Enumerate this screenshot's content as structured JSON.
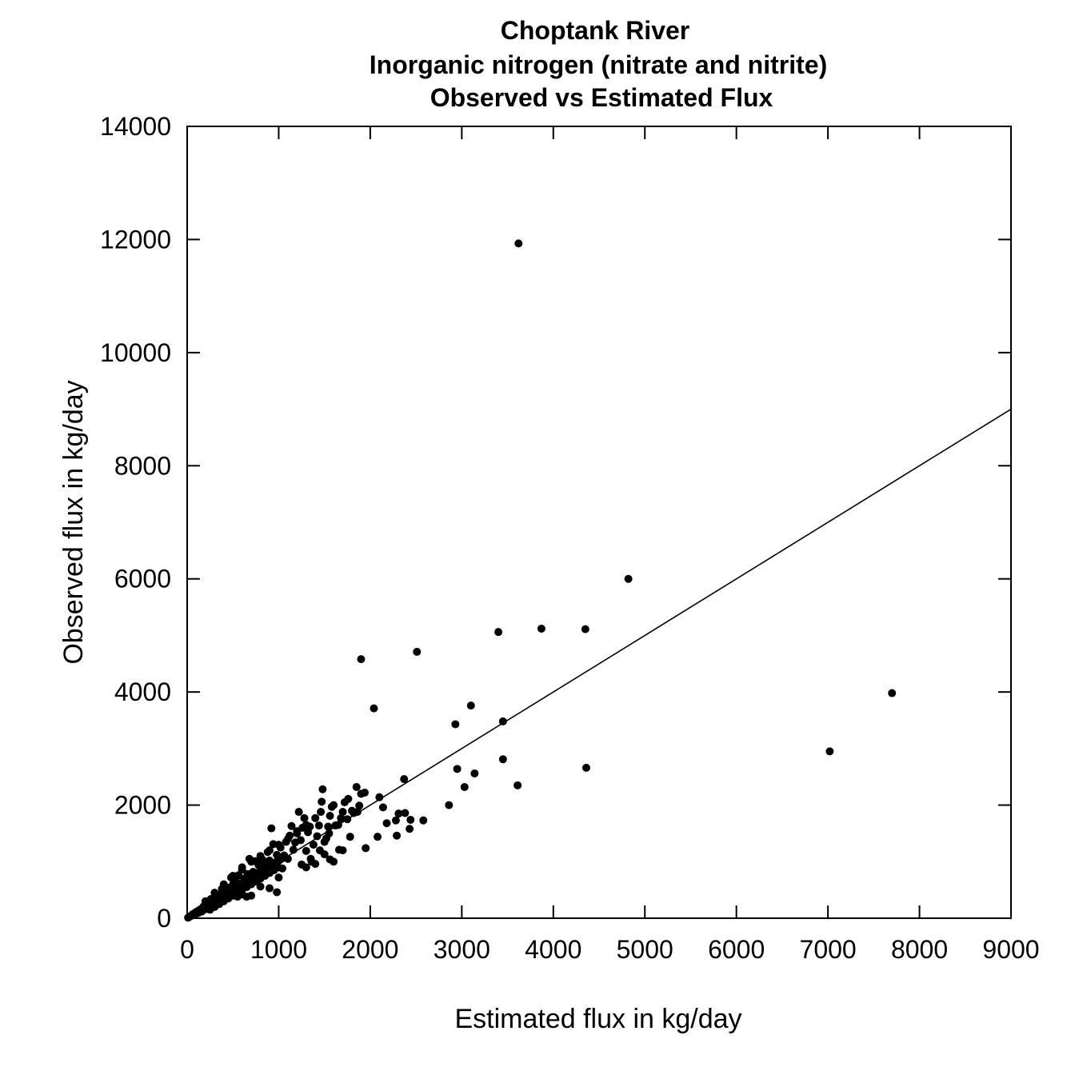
{
  "chart_data": {
    "type": "scatter",
    "title_lines": [
      "Choptank River",
      "Inorganic nitrogen (nitrate and nitrite)",
      "Observed vs Estimated Flux"
    ],
    "xlabel": "Estimated flux in kg/day",
    "ylabel": "Observed flux in kg/day",
    "xlim": [
      0,
      9000
    ],
    "ylim": [
      0,
      14000
    ],
    "xticks": [
      0,
      1000,
      2000,
      3000,
      4000,
      5000,
      6000,
      7000,
      8000,
      9000
    ],
    "yticks": [
      0,
      2000,
      4000,
      6000,
      8000,
      10000,
      12000,
      14000
    ],
    "xtick_labels": [
      "0",
      "1000",
      "2000",
      "3000",
      "4000",
      "5000",
      "6000",
      "7000",
      "8000",
      "9000"
    ],
    "ytick_labels": [
      "0",
      "2000",
      "4000",
      "6000",
      "8000",
      "10000",
      "12000",
      "14000"
    ],
    "grid": false,
    "reference_line": {
      "x": [
        0,
        9000
      ],
      "y": [
        0,
        9000
      ]
    },
    "points": [
      [
        3620,
        11930
      ],
      [
        4820,
        6000
      ],
      [
        1900,
        4580
      ],
      [
        2510,
        4710
      ],
      [
        3400,
        5060
      ],
      [
        3870,
        5120
      ],
      [
        4350,
        5110
      ],
      [
        2040,
        3710
      ],
      [
        3100,
        3760
      ],
      [
        2930,
        3430
      ],
      [
        3450,
        3480
      ],
      [
        7700,
        3980
      ],
      [
        7020,
        2950
      ],
      [
        3450,
        2810
      ],
      [
        2950,
        2640
      ],
      [
        3140,
        2560
      ],
      [
        4360,
        2660
      ],
      [
        3610,
        2350
      ],
      [
        3030,
        2320
      ],
      [
        2370,
        2460
      ],
      [
        2860,
        2000
      ],
      [
        2580,
        1730
      ],
      [
        2440,
        1740
      ],
      [
        2430,
        1580
      ],
      [
        2310,
        1850
      ],
      [
        2380,
        1860
      ],
      [
        2280,
        1730
      ],
      [
        2290,
        1460
      ],
      [
        2180,
        1680
      ],
      [
        2140,
        1960
      ],
      [
        2100,
        2140
      ],
      [
        2080,
        1440
      ],
      [
        1950,
        1240
      ],
      [
        1940,
        2220
      ],
      [
        1900,
        2200
      ],
      [
        1850,
        2320
      ],
      [
        1880,
        1990
      ],
      [
        1860,
        1880
      ],
      [
        1820,
        1860
      ],
      [
        1780,
        1440
      ],
      [
        1760,
        2110
      ],
      [
        1720,
        2050
      ],
      [
        1700,
        1880
      ],
      [
        1680,
        1770
      ],
      [
        1660,
        1210
      ],
      [
        1620,
        1640
      ],
      [
        1600,
        2000
      ],
      [
        1580,
        1970
      ],
      [
        1560,
        1810
      ],
      [
        1540,
        1620
      ],
      [
        1520,
        1410
      ],
      [
        1500,
        1130
      ],
      [
        1480,
        2280
      ],
      [
        1470,
        2060
      ],
      [
        1460,
        1880
      ],
      [
        1440,
        1640
      ],
      [
        1420,
        1450
      ],
      [
        1400,
        1770
      ],
      [
        1380,
        1300
      ],
      [
        1360,
        1000
      ],
      [
        1340,
        1620
      ],
      [
        1320,
        1520
      ],
      [
        1300,
        1190
      ],
      [
        1280,
        1770
      ],
      [
        1260,
        1600
      ],
      [
        1240,
        1380
      ],
      [
        1220,
        1880
      ],
      [
        1200,
        1540
      ],
      [
        1180,
        1340
      ],
      [
        1160,
        1210
      ],
      [
        1140,
        1630
      ],
      [
        1120,
        1460
      ],
      [
        1100,
        1050
      ],
      [
        1080,
        1350
      ],
      [
        1060,
        1110
      ],
      [
        1040,
        880
      ],
      [
        1020,
        1250
      ],
      [
        1000,
        720
      ],
      [
        980,
        1120
      ],
      [
        960,
        900
      ],
      [
        940,
        1310
      ],
      [
        920,
        1590
      ],
      [
        900,
        1020
      ],
      [
        880,
        1170
      ],
      [
        860,
        840
      ],
      [
        840,
        980
      ],
      [
        820,
        1040
      ],
      [
        800,
        860
      ],
      [
        780,
        940
      ],
      [
        760,
        710
      ],
      [
        740,
        1010
      ],
      [
        720,
        820
      ],
      [
        700,
        640
      ],
      [
        680,
        1050
      ],
      [
        660,
        780
      ],
      [
        640,
        560
      ],
      [
        620,
        700
      ],
      [
        600,
        860
      ],
      [
        580,
        520
      ],
      [
        560,
        760
      ],
      [
        540,
        640
      ],
      [
        520,
        440
      ],
      [
        500,
        600
      ],
      [
        480,
        720
      ],
      [
        460,
        380
      ],
      [
        440,
        540
      ],
      [
        420,
        460
      ],
      [
        400,
        320
      ],
      [
        380,
        520
      ],
      [
        360,
        420
      ],
      [
        340,
        260
      ],
      [
        320,
        380
      ],
      [
        300,
        300
      ],
      [
        280,
        220
      ],
      [
        260,
        340
      ],
      [
        240,
        180
      ],
      [
        220,
        250
      ],
      [
        200,
        160
      ],
      [
        180,
        210
      ],
      [
        160,
        120
      ],
      [
        140,
        150
      ],
      [
        120,
        90
      ],
      [
        100,
        110
      ],
      [
        80,
        60
      ],
      [
        60,
        70
      ],
      [
        40,
        40
      ],
      [
        30,
        30
      ],
      [
        20,
        20
      ],
      [
        10,
        10
      ],
      [
        50,
        50
      ],
      [
        70,
        80
      ],
      [
        90,
        100
      ],
      [
        110,
        120
      ],
      [
        130,
        140
      ],
      [
        150,
        160
      ],
      [
        170,
        180
      ],
      [
        190,
        200
      ],
      [
        210,
        220
      ],
      [
        230,
        240
      ],
      [
        250,
        260
      ],
      [
        270,
        280
      ],
      [
        290,
        310
      ],
      [
        310,
        330
      ],
      [
        330,
        350
      ],
      [
        350,
        370
      ],
      [
        370,
        390
      ],
      [
        390,
        410
      ],
      [
        410,
        430
      ],
      [
        430,
        450
      ],
      [
        450,
        470
      ],
      [
        470,
        490
      ],
      [
        490,
        510
      ],
      [
        510,
        530
      ],
      [
        530,
        550
      ],
      [
        550,
        570
      ],
      [
        570,
        590
      ],
      [
        590,
        610
      ],
      [
        610,
        630
      ],
      [
        630,
        650
      ],
      [
        650,
        670
      ],
      [
        670,
        690
      ],
      [
        690,
        710
      ],
      [
        710,
        730
      ],
      [
        730,
        750
      ],
      [
        750,
        770
      ],
      [
        770,
        790
      ],
      [
        790,
        810
      ],
      [
        810,
        830
      ],
      [
        830,
        850
      ],
      [
        850,
        870
      ],
      [
        870,
        890
      ],
      [
        890,
        910
      ],
      [
        910,
        930
      ],
      [
        930,
        950
      ],
      [
        950,
        970
      ],
      [
        970,
        990
      ],
      [
        990,
        1010
      ],
      [
        1010,
        1030
      ],
      [
        1030,
        1050
      ],
      [
        1050,
        1070
      ],
      [
        250,
        150
      ],
      [
        300,
        200
      ],
      [
        350,
        250
      ],
      [
        400,
        300
      ],
      [
        450,
        350
      ],
      [
        500,
        400
      ],
      [
        550,
        450
      ],
      [
        600,
        500
      ],
      [
        650,
        550
      ],
      [
        700,
        600
      ],
      [
        750,
        650
      ],
      [
        800,
        700
      ],
      [
        850,
        750
      ],
      [
        900,
        800
      ],
      [
        950,
        850
      ],
      [
        1000,
        900
      ],
      [
        700,
        400
      ],
      [
        800,
        560
      ],
      [
        900,
        530
      ],
      [
        980,
        460
      ],
      [
        650,
        380
      ],
      [
        600,
        420
      ],
      [
        550,
        380
      ],
      [
        1300,
        900
      ],
      [
        1400,
        960
      ],
      [
        1560,
        1040
      ],
      [
        1600,
        1000
      ],
      [
        1700,
        1200
      ],
      [
        1250,
        950
      ],
      [
        1350,
        1050
      ],
      [
        1450,
        1200
      ],
      [
        1500,
        1350
      ],
      [
        1550,
        1500
      ],
      [
        1650,
        1650
      ],
      [
        1750,
        1750
      ],
      [
        1800,
        1900
      ],
      [
        200,
        300
      ],
      [
        300,
        450
      ],
      [
        400,
        600
      ],
      [
        500,
        750
      ],
      [
        600,
        900
      ],
      [
        700,
        1000
      ],
      [
        800,
        1100
      ],
      [
        900,
        1200
      ],
      [
        1000,
        1300
      ],
      [
        1100,
        1400
      ],
      [
        1200,
        1500
      ],
      [
        1300,
        1650
      ]
    ]
  }
}
